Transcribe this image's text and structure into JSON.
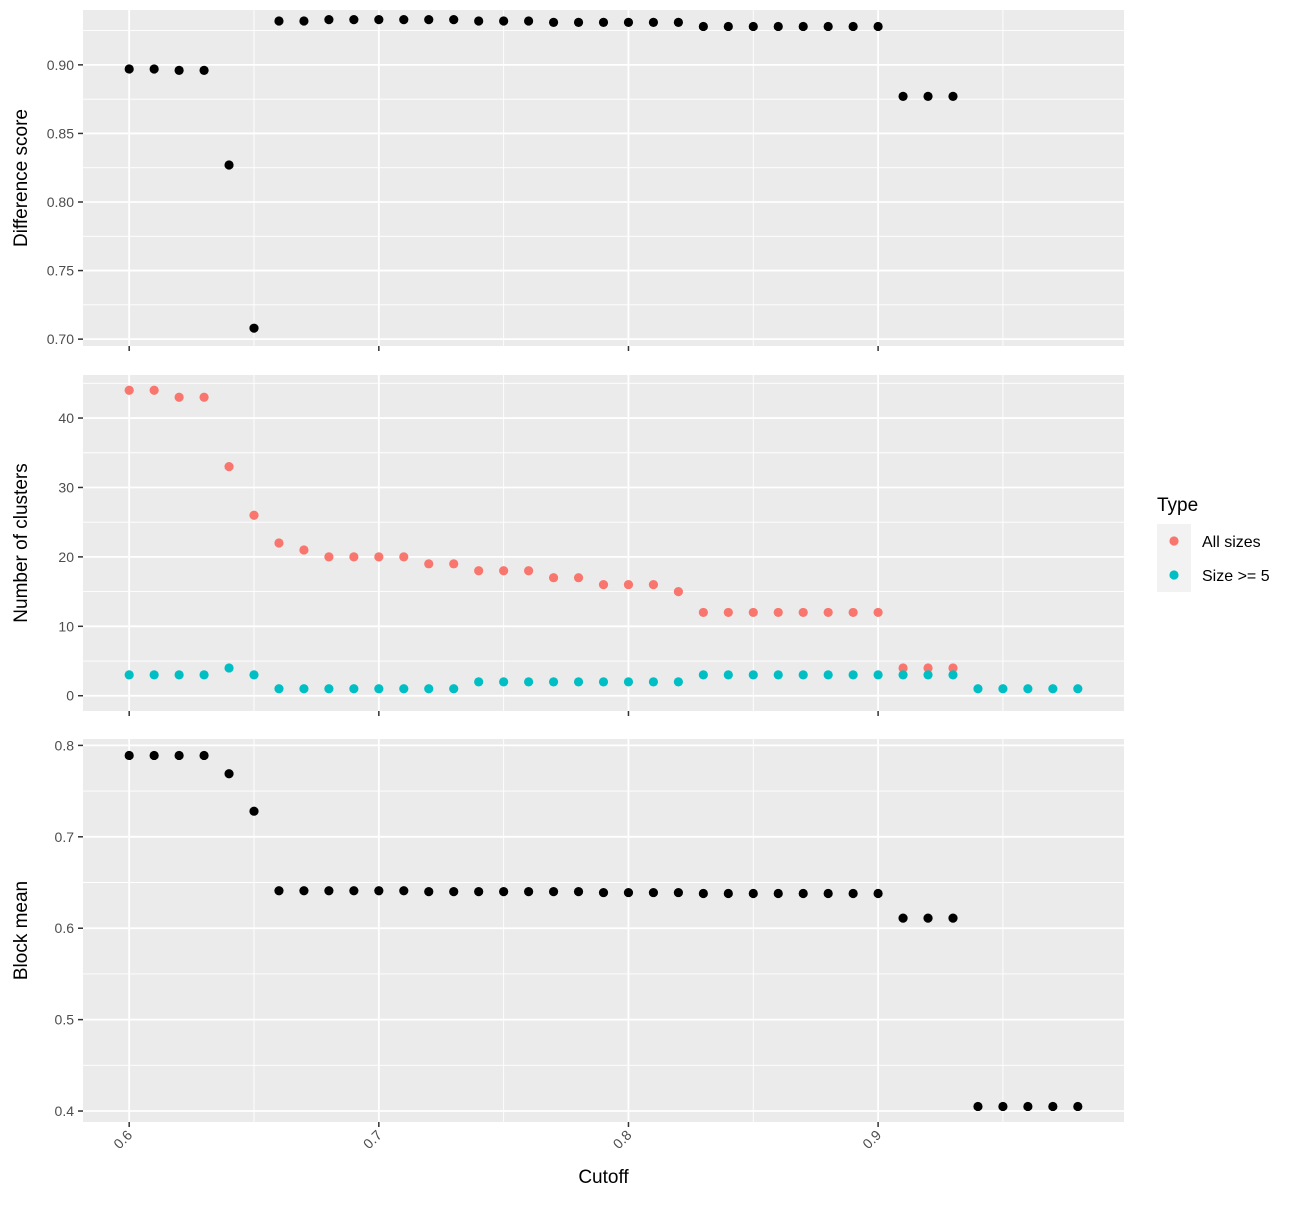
{
  "chart_data": {
    "type": "scatter",
    "xlabel": "Cutoff",
    "x_ticks": [
      0.6,
      0.7,
      0.8,
      0.9
    ],
    "x_tick_labels": [
      "0.6",
      "0.7",
      "0.8",
      "0.9"
    ],
    "xlim": [
      0.5815,
      0.9985
    ],
    "grid": true,
    "legend": {
      "title": "Type",
      "placement": "right",
      "entries": [
        {
          "label": "All sizes",
          "color": "#F8766D"
        },
        {
          "label": "Size >= 5",
          "color": "#00BFC4"
        }
      ]
    },
    "panels": [
      {
        "id": "difference",
        "ylabel": "Difference score",
        "ylim": [
          0.695,
          0.94
        ],
        "y_ticks": [
          0.7,
          0.75,
          0.8,
          0.85,
          0.9
        ],
        "y_tick_labels": [
          "0.70",
          "0.75",
          "0.80",
          "0.85",
          "0.90"
        ],
        "series": [
          {
            "color": "#000000",
            "x": [
              0.6,
              0.61,
              0.62,
              0.63,
              0.64,
              0.65,
              0.66,
              0.67,
              0.68,
              0.69,
              0.7,
              0.71,
              0.72,
              0.73,
              0.74,
              0.75,
              0.76,
              0.77,
              0.78,
              0.79,
              0.8,
              0.81,
              0.82,
              0.83,
              0.84,
              0.85,
              0.86,
              0.87,
              0.88,
              0.89,
              0.9,
              0.91,
              0.92,
              0.93
            ],
            "y": [
              0.897,
              0.897,
              0.896,
              0.896,
              0.827,
              0.708,
              0.932,
              0.932,
              0.933,
              0.933,
              0.933,
              0.933,
              0.933,
              0.933,
              0.932,
              0.932,
              0.932,
              0.931,
              0.931,
              0.931,
              0.931,
              0.931,
              0.931,
              0.928,
              0.928,
              0.928,
              0.928,
              0.928,
              0.928,
              0.928,
              0.928,
              0.877,
              0.877,
              0.877
            ]
          }
        ]
      },
      {
        "id": "clusters",
        "ylabel": "Number of clusters",
        "ylim": [
          -2.2,
          46.2
        ],
        "y_ticks": [
          0,
          10,
          20,
          30,
          40
        ],
        "y_tick_labels": [
          "0",
          "10",
          "20",
          "30",
          "40"
        ],
        "series": [
          {
            "name": "All sizes",
            "color": "#F8766D",
            "x": [
              0.6,
              0.61,
              0.62,
              0.63,
              0.64,
              0.65,
              0.66,
              0.67,
              0.68,
              0.69,
              0.7,
              0.71,
              0.72,
              0.73,
              0.74,
              0.75,
              0.76,
              0.77,
              0.78,
              0.79,
              0.8,
              0.81,
              0.82,
              0.83,
              0.84,
              0.85,
              0.86,
              0.87,
              0.88,
              0.89,
              0.9,
              0.91,
              0.92,
              0.93
            ],
            "y": [
              44,
              44,
              43,
              43,
              33,
              26,
              22,
              21,
              20,
              20,
              20,
              20,
              19,
              19,
              18,
              18,
              18,
              17,
              17,
              16,
              16,
              16,
              15,
              12,
              12,
              12,
              12,
              12,
              12,
              12,
              12,
              4,
              4,
              4
            ]
          },
          {
            "name": "Size >= 5",
            "color": "#00BFC4",
            "x": [
              0.6,
              0.61,
              0.62,
              0.63,
              0.64,
              0.65,
              0.66,
              0.67,
              0.68,
              0.69,
              0.7,
              0.71,
              0.72,
              0.73,
              0.74,
              0.75,
              0.76,
              0.77,
              0.78,
              0.79,
              0.8,
              0.81,
              0.82,
              0.83,
              0.84,
              0.85,
              0.86,
              0.87,
              0.88,
              0.89,
              0.9,
              0.91,
              0.92,
              0.93,
              0.94,
              0.95,
              0.96,
              0.97,
              0.98
            ],
            "y": [
              3,
              3,
              3,
              3,
              4,
              3,
              1,
              1,
              1,
              1,
              1,
              1,
              1,
              1,
              2,
              2,
              2,
              2,
              2,
              2,
              2,
              2,
              2,
              3,
              3,
              3,
              3,
              3,
              3,
              3,
              3,
              3,
              3,
              3,
              1,
              1,
              1,
              1,
              1
            ]
          }
        ]
      },
      {
        "id": "blockmean",
        "ylabel": "Block mean",
        "ylim": [
          0.388,
          0.807
        ],
        "y_ticks": [
          0.4,
          0.5,
          0.6,
          0.7,
          0.8
        ],
        "y_tick_labels": [
          "0.4",
          "0.5",
          "0.6",
          "0.7",
          "0.8"
        ],
        "series": [
          {
            "color": "#000000",
            "x": [
              0.6,
              0.61,
              0.62,
              0.63,
              0.64,
              0.65,
              0.66,
              0.67,
              0.68,
              0.69,
              0.7,
              0.71,
              0.72,
              0.73,
              0.74,
              0.75,
              0.76,
              0.77,
              0.78,
              0.79,
              0.8,
              0.81,
              0.82,
              0.83,
              0.84,
              0.85,
              0.86,
              0.87,
              0.88,
              0.89,
              0.9,
              0.91,
              0.92,
              0.93,
              0.94,
              0.95,
              0.96,
              0.97,
              0.98
            ],
            "y": [
              0.789,
              0.789,
              0.789,
              0.789,
              0.769,
              0.728,
              0.641,
              0.641,
              0.641,
              0.641,
              0.641,
              0.641,
              0.64,
              0.64,
              0.64,
              0.64,
              0.64,
              0.64,
              0.64,
              0.639,
              0.639,
              0.639,
              0.639,
              0.638,
              0.638,
              0.638,
              0.638,
              0.638,
              0.638,
              0.638,
              0.638,
              0.611,
              0.611,
              0.611,
              0.405,
              0.405,
              0.405,
              0.405,
              0.405
            ]
          }
        ]
      }
    ]
  }
}
